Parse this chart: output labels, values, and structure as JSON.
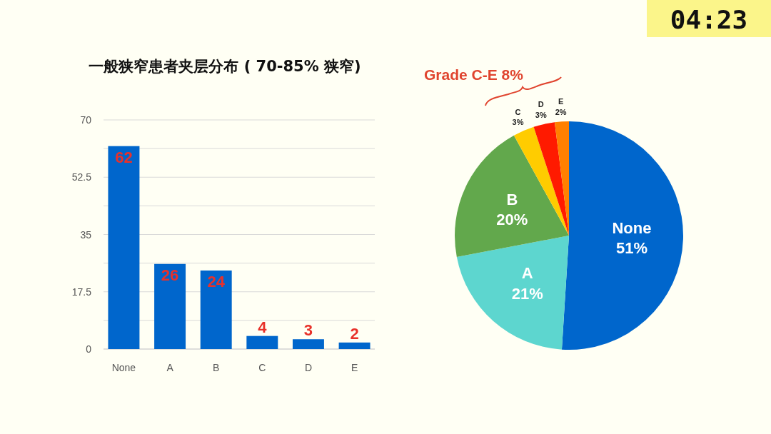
{
  "chart_data": [
    {
      "type": "bar",
      "title": "一般狭窄患者夹层分布 ( 70-85% 狭窄)",
      "categories": [
        "None",
        "A",
        "B",
        "C",
        "D",
        "E"
      ],
      "values": [
        62,
        26,
        24,
        4,
        3,
        2
      ],
      "color": "#0066cc",
      "data_labels": true,
      "ylim": [
        0,
        70
      ],
      "yticks": [
        0,
        {
          "value": 8.75,
          "label": null
        },
        17.5,
        {
          "value": 26.25,
          "label": null
        },
        35,
        {
          "value": 43.75,
          "label": null
        },
        52.5,
        {
          "value": 61.25,
          "label": null
        },
        70
      ],
      "grid": "y"
    },
    {
      "type": "pie",
      "categories": [
        "None",
        "A",
        "B",
        "C",
        "D",
        "E"
      ],
      "values": [
        51,
        21,
        20,
        3,
        3,
        2
      ],
      "colors": [
        "#0066cc",
        "#5dd6cf",
        "#62a84c",
        "#ffcc00",
        "#ff1a00",
        "#ff8000"
      ],
      "value_labels": [
        "51%",
        "21%",
        "20%",
        "3%",
        "3%",
        "2%"
      ],
      "annotations": [
        "Grade C-E 8%",
        "04:23"
      ]
    }
  ]
}
